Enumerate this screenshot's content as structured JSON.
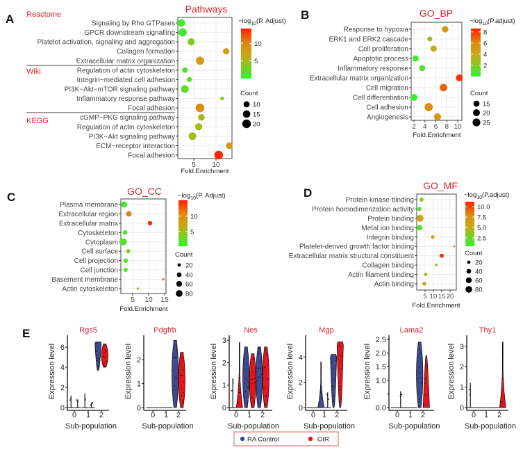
{
  "panel_labels": {
    "A": "A",
    "B": "B",
    "C": "C",
    "D": "D",
    "E": "E"
  },
  "colors": {
    "title_red": "#d9232d",
    "low": "#2ef52e",
    "mid": "#c8a818",
    "high": "#ff1e00",
    "ra_control": "#3b4b8e",
    "oir": "#e8141c"
  },
  "chart_data": [
    {
      "type": "scatter",
      "title": "Pathways",
      "xlabel": "Fold.Enrichment",
      "xticks": [
        5,
        10
      ],
      "xlim": [
        1.4,
        13.6
      ],
      "grid": true,
      "colorbar": {
        "prefix": "−log",
        "sub": "10",
        "suffix": "(P. Adjust)",
        "range": [
          0,
          14.2
        ],
        "ticks": [
          5,
          10
        ]
      },
      "size_legend": {
        "title": "Count",
        "values": [
          10,
          15,
          20
        ]
      },
      "groups": [
        {
          "name": "Reactome",
          "first": 0,
          "last": 4
        },
        {
          "name": "Wiki",
          "first": 5,
          "last": 9
        },
        {
          "name": "KEGG",
          "first": 10,
          "last": 14
        }
      ],
      "terms": [
        {
          "term": "Signaling by Rho GTPases",
          "fold": 2.2,
          "neglog10_padj": 0.8,
          "count": 15
        },
        {
          "term": "GPCR downstream signalling",
          "fold": 2.5,
          "neglog10_padj": 0.8,
          "count": 18
        },
        {
          "term": "Platelet activation, signaling and aggregation",
          "fold": 4.4,
          "neglog10_padj": 3.5,
          "count": 14
        },
        {
          "term": "Collagen formation",
          "fold": 12.3,
          "neglog10_padj": 8,
          "count": 11
        },
        {
          "term": "Extracellular matrix organization",
          "fold": 6.4,
          "neglog10_padj": 8,
          "count": 18
        },
        {
          "term": "Regulation of actin cytoskeleton",
          "fold": 3.0,
          "neglog10_padj": 1.5,
          "count": 8
        },
        {
          "term": "Integrin−mediated cell adhesion",
          "fold": 4.0,
          "neglog10_padj": 1.5,
          "count": 7
        },
        {
          "term": "PI3K−Akt−mTOR signaling pathway",
          "fold": 3.0,
          "neglog10_padj": 2,
          "count": 16
        },
        {
          "term": "Inflammatory response pathway",
          "fold": 11.4,
          "neglog10_padj": 4,
          "count": 4
        },
        {
          "term": "Focal adhesion",
          "fold": 6.4,
          "neglog10_padj": 10,
          "count": 20
        },
        {
          "term": "cGMP−PKG signaling pathway",
          "fold": 6.7,
          "neglog10_padj": 5,
          "count": 12
        },
        {
          "term": "Regulation of actin cytoskeleton",
          "fold": 6.1,
          "neglog10_padj": 5,
          "count": 14
        },
        {
          "term": "PI3K−Akt signaling pathway",
          "fold": 4.7,
          "neglog10_padj": 5,
          "count": 16
        },
        {
          "term": "ECM−receptor interaction",
          "fold": 13.0,
          "neglog10_padj": 8,
          "count": 12
        },
        {
          "term": "Focal adhesion",
          "fold": 10.6,
          "neglog10_padj": 14,
          "count": 20
        }
      ]
    },
    {
      "type": "scatter",
      "title": "GO_BP",
      "xlabel": "Fold.Enrichment",
      "xticks": [
        2,
        4,
        6,
        8,
        10
      ],
      "xlim": [
        1.49,
        10.76
      ],
      "grid": true,
      "colorbar": {
        "prefix": "−log",
        "sub": "10",
        "suffix": "(P.adjust)",
        "range": [
          0,
          8.6
        ],
        "ticks": [
          2,
          4,
          6,
          8
        ]
      },
      "size_legend": {
        "title": "Count",
        "values": [
          15,
          20,
          25
        ]
      },
      "terms": [
        {
          "term": "Response to hypoxia",
          "fold": 7.7,
          "neglog10_padj": 5,
          "count": 17
        },
        {
          "term": "ERK1 and ERK2 cascade",
          "fold": 4.9,
          "neglog10_padj": 3,
          "count": 10
        },
        {
          "term": "Cell proliferation",
          "fold": 5.6,
          "neglog10_padj": 3.5,
          "count": 16
        },
        {
          "term": "Apoptotic process",
          "fold": 2.3,
          "neglog10_padj": 0.4,
          "count": 16
        },
        {
          "term": "Inflammatory response",
          "fold": 3.5,
          "neglog10_padj": 1,
          "count": 15
        },
        {
          "term": "Extracellular matrix organization",
          "fold": 10.3,
          "neglog10_padj": 8,
          "count": 20
        },
        {
          "term": "Cell migration",
          "fold": 7.4,
          "neglog10_padj": 7,
          "count": 23
        },
        {
          "term": "Cell differentiation",
          "fold": 2.0,
          "neglog10_padj": 0.2,
          "count": 20
        },
        {
          "term": "Cell adhesion",
          "fold": 4.7,
          "neglog10_padj": 6,
          "count": 27
        },
        {
          "term": "Angiogenesis",
          "fold": 6.3,
          "neglog10_padj": 5,
          "count": 21
        }
      ]
    },
    {
      "type": "scatter",
      "title": "GO_CC",
      "xlabel": "Fold.Enrichment",
      "xticks": [
        5,
        10,
        15
      ],
      "xlim": [
        1.3,
        15.4
      ],
      "grid": true,
      "colorbar": {
        "prefix": "−log",
        "sub": "10",
        "suffix": "(P. Adjust)",
        "range": [
          0.2,
          15.2
        ],
        "ticks": [
          5,
          10
        ]
      },
      "size_legend": {
        "title": "Count",
        "values": [
          20,
          40,
          60,
          80
        ]
      },
      "terms": [
        {
          "term": "Plasma membrane",
          "fold": 2.3,
          "neglog10_padj": 1.5,
          "count": 70
        },
        {
          "term": "Extracellular region",
          "fold": 3.8,
          "neglog10_padj": 11,
          "count": 55
        },
        {
          "term": "Extracellular matrix",
          "fold": 10.4,
          "neglog10_padj": 14.5,
          "count": 35
        },
        {
          "term": "Cytoskeleton",
          "fold": 2.6,
          "neglog10_padj": 1.5,
          "count": 38
        },
        {
          "term": "Cytoplasm",
          "fold": 2.1,
          "neglog10_padj": 2,
          "count": 85
        },
        {
          "term": "Cell surface",
          "fold": 3.6,
          "neglog10_padj": 4,
          "count": 32
        },
        {
          "term": "Cell projection",
          "fold": 2.8,
          "neglog10_padj": 2,
          "count": 36
        },
        {
          "term": "Cell junction",
          "fold": 2.8,
          "neglog10_padj": 1.5,
          "count": 30
        },
        {
          "term": "Basement membrane",
          "fold": 14.5,
          "neglog10_padj": 9,
          "count": 12
        },
        {
          "term": "Actin cytoskeleton",
          "fold": 6.6,
          "neglog10_padj": 5,
          "count": 10
        }
      ]
    },
    {
      "type": "scatter",
      "title": "GO_MF",
      "xlabel": "Fold.Enrichment",
      "xticks": [
        5,
        10,
        15,
        20
      ],
      "xlim": [
        0,
        23.75
      ],
      "grid": true,
      "colorbar": {
        "prefix": "−log",
        "sub": "10",
        "suffix": "(P.adjust)",
        "range": [
          0.5,
          11.2
        ],
        "ticks_labels": [
          "2.5",
          "5.0",
          "7.5",
          "10.0"
        ],
        "ticks": [
          2.5,
          5,
          7.5,
          10
        ]
      },
      "size_legend": {
        "title": "Count",
        "values": [
          20,
          40,
          60,
          80
        ]
      },
      "terms": [
        {
          "term": "Protein kinase binding",
          "fold": 2.9,
          "neglog10_padj": 3.5,
          "count": 30
        },
        {
          "term": "Protein homodimerization activity",
          "fold": 1.6,
          "neglog10_padj": 1.5,
          "count": 28
        },
        {
          "term": "Protein binding",
          "fold": 2.0,
          "neglog10_padj": 6,
          "count": 85
        },
        {
          "term": "Metal ion binding",
          "fold": 1.7,
          "neglog10_padj": 1.5,
          "count": 55
        },
        {
          "term": "Integrin binding",
          "fold": 9.6,
          "neglog10_padj": 6,
          "count": 25
        },
        {
          "term": "Platelet-derived growth factor binding",
          "fold": 22.5,
          "neglog10_padj": 6,
          "count": 7
        },
        {
          "term": "Extracellular matrix structural constituent",
          "fold": 15.0,
          "neglog10_padj": 11,
          "count": 30
        },
        {
          "term": "Collagen binding",
          "fold": 11.7,
          "neglog10_padj": 4.5,
          "count": 12
        },
        {
          "term": "Actin filament binding",
          "fold": 5.4,
          "neglog10_padj": 4,
          "count": 20
        },
        {
          "term": "Actin binding",
          "fold": 4.6,
          "neglog10_padj": 5,
          "count": 28
        }
      ]
    },
    {
      "type": "violin",
      "xlabel": "Sub-population",
      "ylabel": "Expression level",
      "categories": [
        "0",
        "1",
        "2"
      ],
      "legend": {
        "position": "bottom",
        "entries": [
          "RA Control",
          "OIR"
        ]
      },
      "genes": [
        {
          "gene": "Rgs5",
          "ymax": 6.9,
          "yticks": [
            0,
            2,
            4,
            6
          ],
          "ytick_labels": [
            "0",
            "2",
            "4",
            "6"
          ],
          "groups": [
            {
              "ra_control": {
                "min": 0,
                "max": 1.2,
                "shape": "spike"
              },
              "oir": {
                "min": 0,
                "max": 0.8,
                "shape": "spike"
              }
            },
            {
              "ra_control": {
                "min": 0,
                "max": 1.4,
                "shape": "spike"
              },
              "oir": {
                "min": 0,
                "max": 0.5,
                "shape": "spike"
              }
            },
            {
              "ra_control": {
                "min": 3.7,
                "max": 6.5,
                "shape": "top"
              },
              "oir": {
                "min": 4.0,
                "max": 6.3,
                "shape": "body"
              }
            }
          ]
        },
        {
          "gene": "Pdgfrb",
          "ymax": 2.9,
          "yticks": [
            0,
            1,
            2
          ],
          "ytick_labels": [
            "0",
            "1",
            "2"
          ],
          "groups": [
            {
              "ra_control": {
                "min": 0,
                "max": 0,
                "shape": "flat"
              },
              "oir": {
                "min": 0,
                "max": 0,
                "shape": "flat"
              }
            },
            {
              "ra_control": {
                "min": 0,
                "max": 0,
                "shape": "flat"
              },
              "oir": {
                "min": 0,
                "max": 0,
                "shape": "flat"
              }
            },
            {
              "ra_control": {
                "min": 0,
                "max": 2.8,
                "shape": "body"
              },
              "oir": {
                "min": 0,
                "max": 2.3,
                "shape": "body"
              }
            }
          ]
        },
        {
          "gene": "Nes",
          "ymax": 3.1,
          "yticks": [
            0,
            1,
            2,
            3
          ],
          "ytick_labels": [
            "0",
            "1",
            "2",
            "3"
          ],
          "groups": [
            {
              "ra_control": {
                "min": 0,
                "max": 1.3,
                "shape": "spike"
              },
              "oir": {
                "min": 0,
                "max": 2.9,
                "shape": "bottom"
              }
            },
            {
              "ra_control": {
                "min": 0,
                "max": 2.7,
                "shape": "body"
              },
              "oir": {
                "min": 0,
                "max": 2.4,
                "shape": "body"
              }
            },
            {
              "ra_control": {
                "min": 0,
                "max": 2.7,
                "shape": "body"
              },
              "oir": {
                "min": 0,
                "max": 2.7,
                "shape": "body"
              }
            }
          ]
        },
        {
          "gene": "Mgp",
          "ymax": 5.5,
          "yticks": [
            0,
            2,
            4
          ],
          "ytick_labels": [
            "0",
            "2",
            "4"
          ],
          "groups": [
            {
              "ra_control": {
                "min": 0,
                "max": 0,
                "shape": "flat"
              },
              "oir": {
                "min": 0,
                "max": 0,
                "shape": "flat"
              }
            },
            {
              "ra_control": {
                "min": 0,
                "max": 3.6,
                "shape": "bottom"
              },
              "oir": {
                "min": 0,
                "max": 1.2,
                "shape": "spike"
              }
            },
            {
              "ra_control": {
                "min": 0,
                "max": 4.2,
                "shape": "top"
              },
              "oir": {
                "min": 0,
                "max": 5.2,
                "shape": "top"
              }
            }
          ]
        },
        {
          "gene": "Lama2",
          "ymax": 2.55,
          "yticks": [
            0,
            0.5,
            1,
            1.5,
            2,
            2.5
          ],
          "ytick_labels": [
            "0.0",
            "",
            "1.0",
            "1.5",
            "2.0",
            "2.5"
          ],
          "groups": [
            {
              "ra_control": {
                "min": 0,
                "max": 0,
                "shape": "flat"
              },
              "oir": {
                "min": 0,
                "max": 0.6,
                "shape": "spike"
              }
            },
            {
              "ra_control": {
                "min": 0,
                "max": 0,
                "shape": "flat"
              },
              "oir": {
                "min": 0,
                "max": 0,
                "shape": "flat"
              }
            },
            {
              "ra_control": {
                "min": 0,
                "max": 2.4,
                "shape": "body"
              },
              "oir": {
                "min": 0,
                "max": 1.9,
                "shape": "bottom2"
              }
            }
          ]
        },
        {
          "gene": "Thy1",
          "ymax": 3.4,
          "yticks": [
            0,
            1,
            2,
            3
          ],
          "ytick_labels": [
            "0",
            "1",
            "2",
            "3"
          ],
          "groups": [
            {
              "ra_control": {
                "min": 0,
                "max": 1.2,
                "shape": "spike"
              },
              "oir": {
                "min": 0,
                "max": 0,
                "shape": "flat"
              }
            },
            {
              "ra_control": {
                "min": 0,
                "max": 0,
                "shape": "flat"
              },
              "oir": {
                "min": 0,
                "max": 0,
                "shape": "flat"
              }
            },
            {
              "ra_control": {
                "min": 0,
                "max": 0,
                "shape": "flat"
              },
              "oir": {
                "min": 0,
                "max": 3.2,
                "shape": "bottom"
              }
            }
          ]
        }
      ]
    }
  ]
}
